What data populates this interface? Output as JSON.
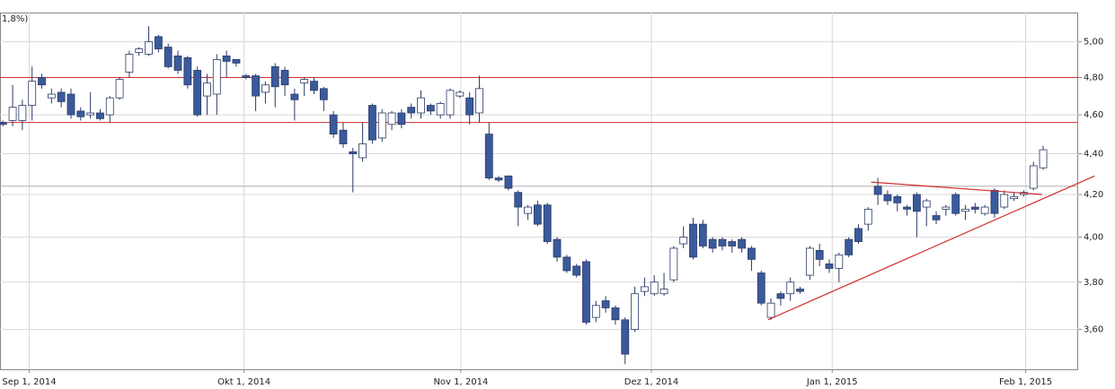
{
  "chart_data": {
    "type": "candlestick",
    "annotation": "1,8%)",
    "log_scale": true,
    "grid": true,
    "ylim": [
      3.44,
      5.17
    ],
    "yticks": [
      {
        "value": 5.0,
        "label": "5,00"
      },
      {
        "value": 4.8,
        "label": "4,80"
      },
      {
        "value": 4.6,
        "label": "4,60"
      },
      {
        "value": 4.4,
        "label": "4,40"
      },
      {
        "value": 4.2,
        "label": "4,20"
      },
      {
        "value": 4.0,
        "label": "4,00"
      },
      {
        "value": 3.8,
        "label": "3,80"
      },
      {
        "value": 3.6,
        "label": "3,60"
      }
    ],
    "xlim": [
      -0.3,
      110.6
    ],
    "xticks": [
      {
        "value": 2.7,
        "label": "Sep 1, 2014"
      },
      {
        "value": 24.8,
        "label": "Okt 1, 2014"
      },
      {
        "value": 47.1,
        "label": "Nov 1, 2014"
      },
      {
        "value": 66.7,
        "label": "Dez 1, 2014"
      },
      {
        "value": 85.3,
        "label": "Jan 1, 2015"
      },
      {
        "value": 105.2,
        "label": "Feb 1, 2015"
      }
    ],
    "up_color": "#ffffff",
    "down_color": "#3a5a9c",
    "open": [
      4.56,
      4.57,
      4.57,
      4.65,
      4.8,
      4.69,
      4.72,
      4.71,
      4.62,
      4.6,
      4.61,
      4.6,
      4.69,
      4.83,
      4.94,
      4.93,
      5.03,
      4.97,
      4.92,
      4.91,
      4.84,
      4.7,
      4.71,
      4.92,
      4.9,
      4.81,
      4.81,
      4.72,
      4.86,
      4.84,
      4.71,
      4.77,
      4.78,
      4.74,
      4.6,
      4.52,
      4.41,
      4.38,
      4.65,
      4.48,
      4.55,
      4.61,
      4.64,
      4.61,
      4.65,
      4.6,
      4.6,
      4.7,
      4.69,
      4.61,
      4.5,
      4.28,
      4.29,
      4.21,
      4.11,
      4.15,
      4.15,
      3.99,
      3.91,
      3.87,
      3.89,
      3.65,
      3.72,
      3.69,
      3.64,
      3.6,
      3.76,
      3.75,
      3.75,
      3.81,
      3.97,
      4.06,
      4.06,
      3.99,
      3.99,
      3.98,
      3.99,
      3.95,
      3.84,
      3.65,
      3.75,
      3.75,
      3.77,
      3.83,
      3.94,
      3.88,
      3.86,
      3.99,
      4.04,
      4.06,
      4.24,
      4.2,
      4.19,
      4.14,
      4.2,
      4.14,
      4.1,
      4.13,
      4.2,
      4.12,
      4.14,
      4.11,
      4.22,
      4.14,
      4.18,
      4.2,
      4.23,
      4.33
    ],
    "high": [
      4.57,
      4.76,
      4.68,
      4.86,
      4.82,
      4.74,
      4.74,
      4.74,
      4.64,
      4.72,
      4.63,
      4.7,
      4.8,
      4.95,
      4.97,
      5.09,
      5.04,
      4.99,
      4.95,
      4.92,
      4.86,
      4.82,
      4.93,
      4.95,
      4.9,
      4.82,
      4.82,
      4.78,
      4.88,
      4.86,
      4.74,
      4.8,
      4.8,
      4.75,
      4.62,
      4.56,
      4.43,
      4.56,
      4.66,
      4.63,
      4.62,
      4.63,
      4.66,
      4.73,
      4.66,
      4.67,
      4.74,
      4.73,
      4.72,
      4.81,
      4.56,
      4.29,
      4.29,
      4.22,
      4.15,
      4.17,
      4.16,
      4.0,
      3.92,
      3.88,
      3.9,
      3.72,
      3.74,
      3.7,
      3.65,
      3.78,
      3.82,
      3.83,
      3.84,
      3.96,
      4.05,
      4.09,
      4.08,
      4.0,
      4.0,
      3.99,
      4.0,
      3.96,
      3.85,
      3.73,
      3.76,
      3.82,
      3.78,
      3.96,
      3.97,
      3.9,
      3.93,
      4.0,
      4.06,
      4.14,
      4.28,
      4.22,
      4.2,
      4.15,
      4.21,
      4.18,
      4.12,
      4.15,
      4.21,
      4.15,
      4.16,
      4.15,
      4.23,
      4.22,
      4.21,
      4.22,
      4.36,
      4.44
    ],
    "low": [
      4.54,
      4.54,
      4.52,
      4.57,
      4.74,
      4.66,
      4.64,
      4.58,
      4.57,
      4.58,
      4.57,
      4.56,
      4.68,
      4.8,
      4.92,
      4.92,
      4.94,
      4.85,
      4.82,
      4.74,
      4.59,
      4.6,
      4.6,
      4.8,
      4.86,
      4.79,
      4.62,
      4.66,
      4.64,
      4.7,
      4.57,
      4.7,
      4.71,
      4.62,
      4.48,
      4.43,
      4.21,
      4.36,
      4.45,
      4.46,
      4.52,
      4.53,
      4.58,
      4.58,
      4.6,
      4.58,
      4.58,
      4.69,
      4.55,
      4.56,
      4.27,
      4.26,
      4.22,
      4.05,
      4.08,
      4.05,
      3.97,
      3.89,
      3.84,
      3.82,
      3.62,
      3.63,
      3.67,
      3.62,
      3.46,
      3.59,
      3.74,
      3.74,
      3.74,
      3.8,
      3.95,
      3.9,
      3.95,
      3.93,
      3.94,
      3.93,
      3.93,
      3.85,
      3.7,
      3.64,
      3.7,
      3.72,
      3.75,
      3.81,
      3.87,
      3.84,
      3.8,
      3.91,
      3.97,
      4.03,
      4.15,
      4.15,
      4.12,
      4.1,
      4.0,
      4.05,
      4.06,
      4.1,
      4.1,
      4.08,
      4.11,
      4.1,
      4.09,
      4.13,
      4.17,
      4.19,
      4.22,
      4.32
    ],
    "close": [
      4.55,
      4.64,
      4.65,
      4.78,
      4.76,
      4.71,
      4.67,
      4.6,
      4.59,
      4.61,
      4.58,
      4.69,
      4.79,
      4.93,
      4.96,
      5.0,
      4.96,
      4.86,
      4.84,
      4.76,
      4.6,
      4.77,
      4.9,
      4.89,
      4.88,
      4.8,
      4.7,
      4.76,
      4.75,
      4.76,
      4.68,
      4.79,
      4.73,
      4.68,
      4.5,
      4.45,
      4.4,
      4.45,
      4.47,
      4.61,
      4.61,
      4.55,
      4.61,
      4.69,
      4.62,
      4.66,
      4.73,
      4.72,
      4.6,
      4.74,
      4.28,
      4.27,
      4.23,
      4.14,
      4.14,
      4.06,
      3.98,
      3.91,
      3.85,
      3.83,
      3.63,
      3.7,
      3.69,
      3.64,
      3.5,
      3.75,
      3.78,
      3.8,
      3.77,
      3.95,
      4.0,
      3.91,
      3.96,
      3.95,
      3.96,
      3.96,
      3.95,
      3.9,
      3.71,
      3.71,
      3.73,
      3.8,
      3.76,
      3.95,
      3.9,
      3.86,
      3.92,
      3.92,
      3.98,
      4.13,
      4.2,
      4.17,
      4.16,
      4.13,
      4.12,
      4.17,
      4.08,
      4.14,
      4.11,
      4.13,
      4.13,
      4.14,
      4.11,
      4.2,
      4.19,
      4.21,
      4.34,
      4.42
    ],
    "hlines": [
      {
        "value": 4.8,
        "color": "#d03030"
      },
      {
        "value": 4.56,
        "color": "#d03030"
      },
      {
        "value": 4.24,
        "color": "#b0b0b0"
      }
    ],
    "trendlines": [
      {
        "x": [
          78.7,
          112.3
        ],
        "y": [
          3.64,
          4.29
        ],
        "color": "#d03030"
      },
      {
        "x": [
          89.3,
          106.9
        ],
        "y": [
          4.26,
          4.2
        ],
        "color": "#d03030"
      }
    ]
  }
}
